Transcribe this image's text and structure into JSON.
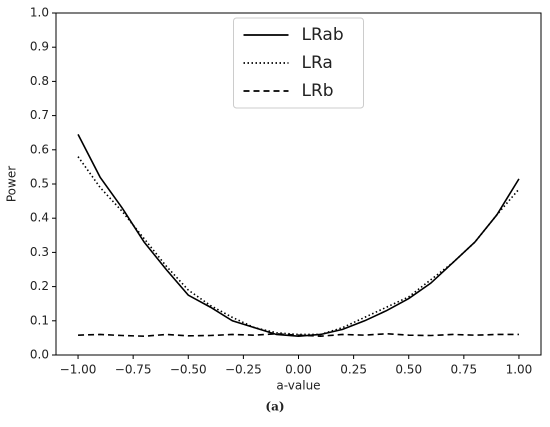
{
  "chart_data": {
    "type": "line",
    "caption": "(a)",
    "xlabel": "a-value",
    "ylabel": "Power",
    "x": [
      -1.0,
      -0.9,
      -0.8,
      -0.7,
      -0.6,
      -0.5,
      -0.4,
      -0.3,
      -0.2,
      -0.1,
      0.0,
      0.1,
      0.2,
      0.3,
      0.4,
      0.5,
      0.6,
      0.7,
      0.8,
      0.9,
      1.0
    ],
    "series": [
      {
        "name": "LRab",
        "color": "#000000",
        "style": "solid",
        "values": [
          0.645,
          0.52,
          0.43,
          0.33,
          0.25,
          0.175,
          0.14,
          0.1,
          0.08,
          0.06,
          0.055,
          0.06,
          0.075,
          0.1,
          0.13,
          0.165,
          0.21,
          0.27,
          0.33,
          0.41,
          0.515
        ]
      },
      {
        "name": "LRa",
        "color": "#000000",
        "style": "dotted",
        "values": [
          0.58,
          0.49,
          0.42,
          0.34,
          0.26,
          0.19,
          0.145,
          0.11,
          0.08,
          0.065,
          0.06,
          0.06,
          0.08,
          0.11,
          0.14,
          0.17,
          0.22,
          0.27,
          0.33,
          0.41,
          0.485
        ]
      },
      {
        "name": "LRb",
        "color": "#000000",
        "style": "dashed",
        "values": [
          0.058,
          0.06,
          0.057,
          0.055,
          0.06,
          0.056,
          0.057,
          0.06,
          0.058,
          0.062,
          0.058,
          0.055,
          0.06,
          0.058,
          0.062,
          0.058,
          0.057,
          0.06,
          0.058,
          0.06,
          0.06
        ]
      }
    ],
    "xlim": [
      -1.1,
      1.1
    ],
    "ylim": [
      0,
      1
    ],
    "xticks": [
      {
        "value": -1,
        "label": "−1.00"
      },
      {
        "value": -0.75,
        "label": "−0.75"
      },
      {
        "value": -0.5,
        "label": "−0.50"
      },
      {
        "value": -0.25,
        "label": "−0.25"
      },
      {
        "value": 0,
        "label": "0.00"
      },
      {
        "value": 0.25,
        "label": "0.25"
      },
      {
        "value": 0.5,
        "label": "0.50"
      },
      {
        "value": 0.75,
        "label": "0.75"
      },
      {
        "value": 1,
        "label": "1.00"
      }
    ],
    "yticks": [
      {
        "value": 0,
        "label": "0.0"
      },
      0.1,
      0.2,
      0.3,
      0.4,
      0.5,
      0.6,
      0.7,
      0.8,
      0.9,
      {
        "value": 1,
        "label": "1.0"
      }
    ],
    "legend": "upper center"
  }
}
